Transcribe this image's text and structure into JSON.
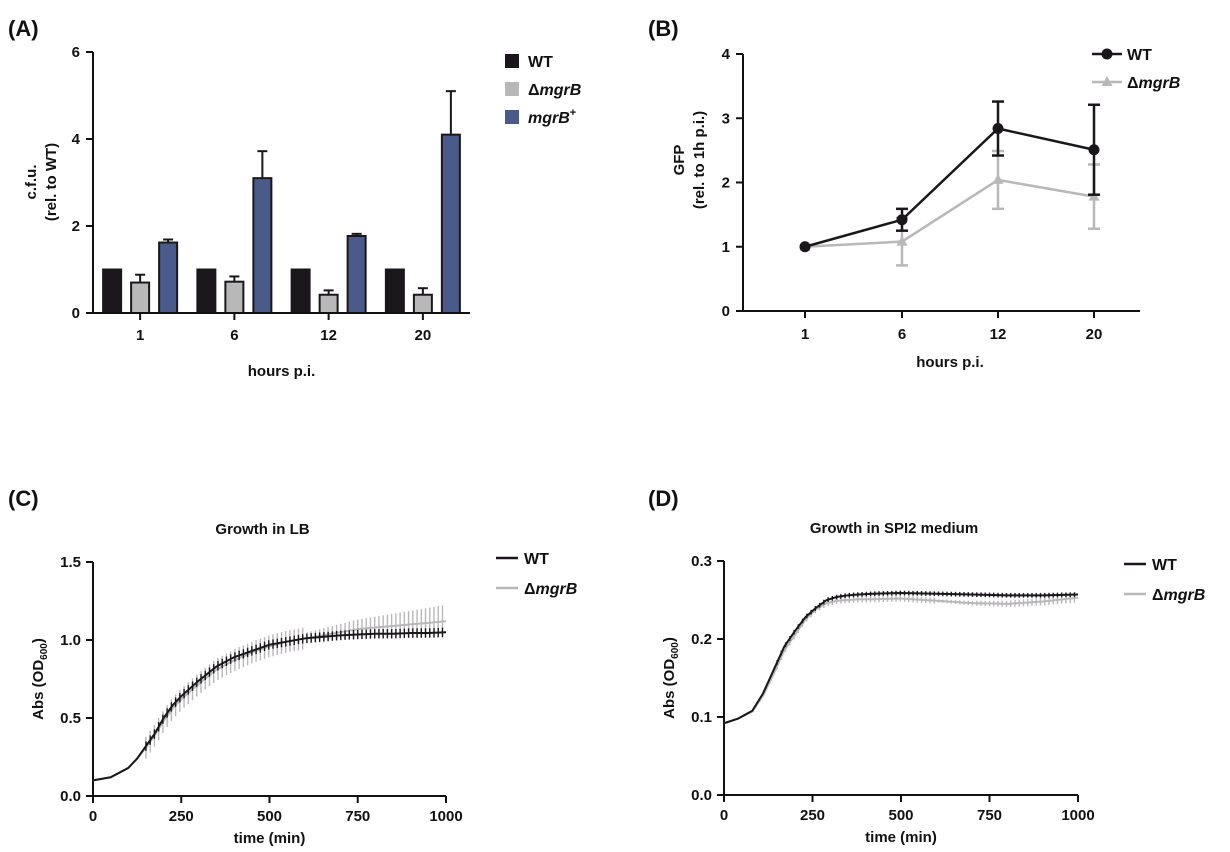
{
  "panels": {
    "A": "(A)",
    "B": "(B)",
    "C": "(C)",
    "D": "(D)"
  },
  "colors": {
    "wt": "#1a171b",
    "mgrB": "#b8b8b8",
    "complement": "#4a5a8a",
    "axis": "#111111"
  },
  "chart_data": [
    {
      "id": "A",
      "type": "bar",
      "title": "",
      "xlabel": "hours p.i.",
      "ylabel": [
        "c.f.u.",
        "(rel. to WT)"
      ],
      "ylim": [
        0,
        6
      ],
      "yticks": [
        0,
        2,
        4,
        6
      ],
      "categories": [
        "1",
        "6",
        "12",
        "20"
      ],
      "legend_position": "right",
      "series": [
        {
          "name": "WT",
          "name_prefix": "",
          "name_italic": "",
          "name_sup": "",
          "color": "#1a171b",
          "values": [
            1.0,
            1.0,
            1.0,
            1.0
          ],
          "errors": [
            0,
            0,
            0,
            0
          ]
        },
        {
          "name": "ΔmgrB",
          "name_prefix": "Δ",
          "name_italic": "mgrB",
          "name_sup": "",
          "color": "#b8b8b8",
          "values": [
            0.7,
            0.72,
            0.42,
            0.42
          ],
          "errors": [
            0.18,
            0.12,
            0.1,
            0.15
          ]
        },
        {
          "name": "mgrB+",
          "name_prefix": "",
          "name_italic": "mgrB",
          "name_sup": "+",
          "color": "#4a5a8a",
          "values": [
            1.62,
            3.1,
            1.77,
            4.1
          ],
          "errors": [
            0.07,
            0.62,
            0.05,
            1.0
          ]
        }
      ]
    },
    {
      "id": "B",
      "type": "line",
      "title": "",
      "xlabel": "hours p.i.",
      "ylabel": [
        "GFP",
        "(rel. to 1h p.i.)"
      ],
      "ylim": [
        0,
        4
      ],
      "yticks": [
        0,
        1,
        2,
        3,
        4
      ],
      "categories": [
        "1",
        "6",
        "12",
        "20"
      ],
      "legend_position": "top-right",
      "series": [
        {
          "name": "WT",
          "name_prefix": "",
          "name_italic": "",
          "color": "#1a171b",
          "marker": "circle",
          "values": [
            1.0,
            1.42,
            2.84,
            2.51
          ],
          "errors": [
            0.02,
            0.17,
            0.42,
            0.7
          ]
        },
        {
          "name": "ΔmgrB",
          "name_prefix": "Δ",
          "name_italic": "mgrB",
          "color": "#b8b8b8",
          "marker": "triangle",
          "values": [
            1.0,
            1.08,
            2.04,
            1.78
          ],
          "errors": [
            0.02,
            0.37,
            0.45,
            0.5
          ]
        }
      ]
    },
    {
      "id": "C",
      "type": "line",
      "title": "Growth in LB",
      "xlabel": "time (min)",
      "ylabel_main": "Abs (OD",
      "ylabel_sub": "600",
      "ylabel_end": ")",
      "xlim": [
        0,
        1000
      ],
      "ylim": [
        0,
        1.5
      ],
      "xticks": [
        0,
        250,
        500,
        750,
        1000
      ],
      "yticks": [
        "0.0",
        "0.5",
        "1.0",
        "1.5"
      ],
      "legend_position": "top-right",
      "series": [
        {
          "name": "WT",
          "name_prefix": "",
          "name_italic": "",
          "color": "#1a171b",
          "x": [
            0,
            50,
            100,
            125,
            150,
            175,
            200,
            225,
            250,
            300,
            350,
            400,
            450,
            500,
            550,
            600,
            650,
            700,
            750,
            800,
            850,
            900,
            950,
            1000
          ],
          "y": [
            0.1,
            0.12,
            0.18,
            0.24,
            0.32,
            0.4,
            0.5,
            0.58,
            0.64,
            0.74,
            0.83,
            0.89,
            0.93,
            0.97,
            0.99,
            1.01,
            1.02,
            1.03,
            1.035,
            1.04,
            1.04,
            1.045,
            1.045,
            1.05
          ],
          "error_band": 0.03
        },
        {
          "name": "ΔmgrB",
          "name_prefix": "Δ",
          "name_italic": "mgrB",
          "color": "#b8b8b8",
          "x": [
            0,
            50,
            100,
            125,
            150,
            175,
            200,
            225,
            250,
            300,
            350,
            400,
            450,
            500,
            550,
            600,
            650,
            700,
            750,
            800,
            850,
            900,
            950,
            1000
          ],
          "y": [
            0.1,
            0.12,
            0.18,
            0.24,
            0.31,
            0.39,
            0.48,
            0.56,
            0.62,
            0.72,
            0.81,
            0.87,
            0.92,
            0.96,
            0.99,
            1.01,
            1.03,
            1.05,
            1.07,
            1.08,
            1.09,
            1.1,
            1.11,
            1.12
          ],
          "error_band": 0.07
        }
      ]
    },
    {
      "id": "D",
      "type": "line",
      "title": "Growth in SPI2 medium",
      "xlabel": "time (min)",
      "ylabel_main": "Abs (OD",
      "ylabel_sub": "600",
      "ylabel_end": ")",
      "xlim": [
        0,
        1000
      ],
      "ylim": [
        0,
        0.3
      ],
      "xticks": [
        0,
        250,
        500,
        750,
        1000
      ],
      "yticks": [
        "0.0",
        "0.1",
        "0.2",
        "0.3"
      ],
      "legend_position": "top-right",
      "series": [
        {
          "name": "WT",
          "name_prefix": "",
          "name_italic": "",
          "color": "#1a171b",
          "x": [
            0,
            40,
            80,
            110,
            140,
            170,
            200,
            230,
            260,
            290,
            320,
            350,
            380,
            420,
            500,
            600,
            700,
            800,
            900,
            1000
          ],
          "y": [
            0.092,
            0.098,
            0.108,
            0.13,
            0.16,
            0.19,
            0.21,
            0.228,
            0.24,
            0.25,
            0.254,
            0.256,
            0.257,
            0.258,
            0.259,
            0.258,
            0.257,
            0.256,
            0.256,
            0.257
          ],
          "error_band": 0.003
        },
        {
          "name": "ΔmgrB",
          "name_prefix": "Δ",
          "name_italic": "mgrB",
          "color": "#b8b8b8",
          "x": [
            0,
            40,
            80,
            110,
            140,
            170,
            200,
            230,
            260,
            290,
            320,
            350,
            380,
            420,
            500,
            600,
            700,
            800,
            900,
            1000
          ],
          "y": [
            0.092,
            0.098,
            0.107,
            0.127,
            0.155,
            0.185,
            0.205,
            0.225,
            0.238,
            0.246,
            0.249,
            0.25,
            0.251,
            0.251,
            0.252,
            0.249,
            0.246,
            0.245,
            0.248,
            0.253
          ],
          "error_band": 0.004
        }
      ]
    }
  ]
}
